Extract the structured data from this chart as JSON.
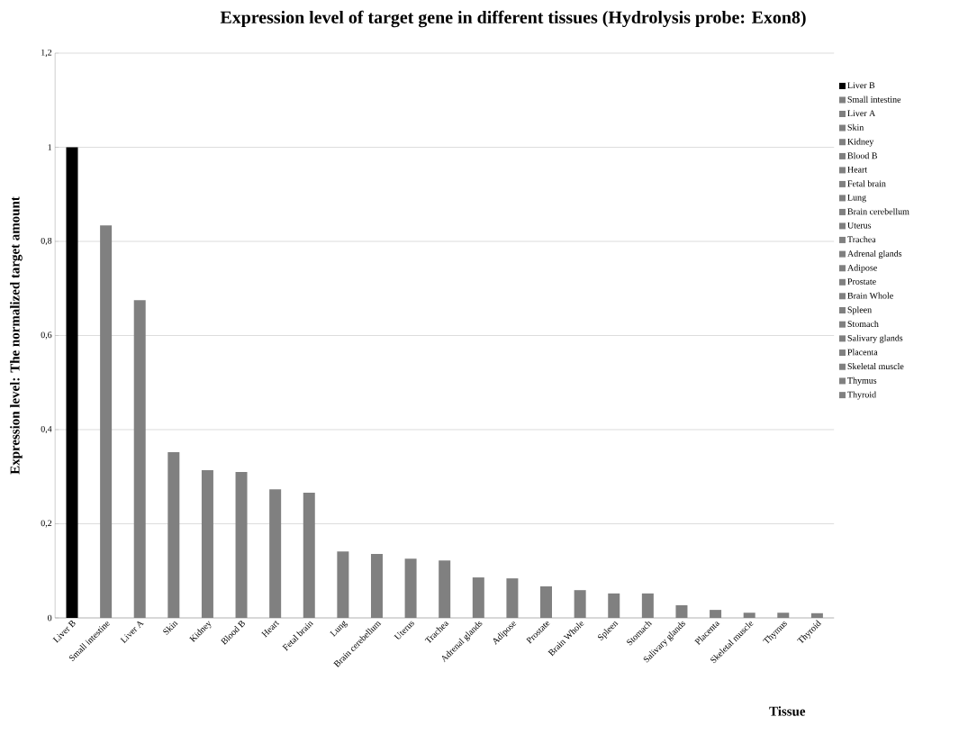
{
  "chart_data": {
    "type": "bar",
    "title": "Expression level of target gene in different tissues (Hydrolysis  probe: Exon8)",
    "xlabel": "Tissue",
    "ylabel": "Expression level: The normalized target amount",
    "categories": [
      "Liver B",
      "Small intestine",
      "Liver A",
      "Skin",
      "Kidney",
      "Blood B",
      "Heart",
      "Fetal brain",
      "Lung",
      "Brain cerebellum",
      "Uterus",
      "Trachea",
      "Adrenal glands",
      "Adipose",
      "Prostate",
      "Brain Whole",
      "Spleen",
      "Stomach",
      "Salivary glands",
      "Placenta",
      "Skeletal muscle",
      "Thymus",
      "Thyroid"
    ],
    "series": [
      {
        "name": "Liver B",
        "color": "#000000",
        "values": [
          1.0,
          null,
          null,
          null,
          null,
          null,
          null,
          null,
          null,
          null,
          null,
          null,
          null,
          null,
          null,
          null,
          null,
          null,
          null,
          null,
          null,
          null,
          null
        ]
      },
      {
        "name": "Small intestine",
        "color": "#808080",
        "values": [
          null,
          0.834,
          null,
          null,
          null,
          null,
          null,
          null,
          null,
          null,
          null,
          null,
          null,
          null,
          null,
          null,
          null,
          null,
          null,
          null,
          null,
          null,
          null
        ]
      },
      {
        "name": "Liver A",
        "color": "#808080",
        "values": [
          null,
          null,
          0.675,
          null,
          null,
          null,
          null,
          null,
          null,
          null,
          null,
          null,
          null,
          null,
          null,
          null,
          null,
          null,
          null,
          null,
          null,
          null,
          null
        ]
      },
      {
        "name": "Skin",
        "color": "#808080",
        "values": [
          null,
          null,
          null,
          0.352,
          null,
          null,
          null,
          null,
          null,
          null,
          null,
          null,
          null,
          null,
          null,
          null,
          null,
          null,
          null,
          null,
          null,
          null,
          null
        ]
      },
      {
        "name": "Kidney",
        "color": "#808080",
        "values": [
          null,
          null,
          null,
          null,
          0.314,
          null,
          null,
          null,
          null,
          null,
          null,
          null,
          null,
          null,
          null,
          null,
          null,
          null,
          null,
          null,
          null,
          null,
          null
        ]
      },
      {
        "name": "Blood B",
        "color": "#808080",
        "values": [
          null,
          null,
          null,
          null,
          null,
          0.31,
          null,
          null,
          null,
          null,
          null,
          null,
          null,
          null,
          null,
          null,
          null,
          null,
          null,
          null,
          null,
          null,
          null
        ]
      },
      {
        "name": "Heart",
        "color": "#808080",
        "values": [
          null,
          null,
          null,
          null,
          null,
          null,
          0.273,
          null,
          null,
          null,
          null,
          null,
          null,
          null,
          null,
          null,
          null,
          null,
          null,
          null,
          null,
          null,
          null
        ]
      },
      {
        "name": "Fetal brain",
        "color": "#808080",
        "values": [
          null,
          null,
          null,
          null,
          null,
          null,
          null,
          0.266,
          null,
          null,
          null,
          null,
          null,
          null,
          null,
          null,
          null,
          null,
          null,
          null,
          null,
          null,
          null
        ]
      },
      {
        "name": "Lung",
        "color": "#808080",
        "values": [
          null,
          null,
          null,
          null,
          null,
          null,
          null,
          null,
          0.141,
          null,
          null,
          null,
          null,
          null,
          null,
          null,
          null,
          null,
          null,
          null,
          null,
          null,
          null
        ]
      },
      {
        "name": "Brain cerebellum",
        "color": "#808080",
        "values": [
          null,
          null,
          null,
          null,
          null,
          null,
          null,
          null,
          null,
          0.136,
          null,
          null,
          null,
          null,
          null,
          null,
          null,
          null,
          null,
          null,
          null,
          null,
          null
        ]
      },
      {
        "name": "Uterus",
        "color": "#808080",
        "values": [
          null,
          null,
          null,
          null,
          null,
          null,
          null,
          null,
          null,
          null,
          0.126,
          null,
          null,
          null,
          null,
          null,
          null,
          null,
          null,
          null,
          null,
          null,
          null
        ]
      },
      {
        "name": "Trachea",
        "color": "#808080",
        "values": [
          null,
          null,
          null,
          null,
          null,
          null,
          null,
          null,
          null,
          null,
          null,
          0.122,
          null,
          null,
          null,
          null,
          null,
          null,
          null,
          null,
          null,
          null,
          null
        ]
      },
      {
        "name": "Adrenal glands",
        "color": "#808080",
        "values": [
          null,
          null,
          null,
          null,
          null,
          null,
          null,
          null,
          null,
          null,
          null,
          null,
          0.086,
          null,
          null,
          null,
          null,
          null,
          null,
          null,
          null,
          null,
          null
        ]
      },
      {
        "name": "Adipose",
        "color": "#808080",
        "values": [
          null,
          null,
          null,
          null,
          null,
          null,
          null,
          null,
          null,
          null,
          null,
          null,
          null,
          0.084,
          null,
          null,
          null,
          null,
          null,
          null,
          null,
          null,
          null
        ]
      },
      {
        "name": "Prostate",
        "color": "#808080",
        "values": [
          null,
          null,
          null,
          null,
          null,
          null,
          null,
          null,
          null,
          null,
          null,
          null,
          null,
          null,
          0.067,
          null,
          null,
          null,
          null,
          null,
          null,
          null,
          null
        ]
      },
      {
        "name": "Brain Whole",
        "color": "#808080",
        "values": [
          null,
          null,
          null,
          null,
          null,
          null,
          null,
          null,
          null,
          null,
          null,
          null,
          null,
          null,
          null,
          0.059,
          null,
          null,
          null,
          null,
          null,
          null,
          null
        ]
      },
      {
        "name": "Spleen",
        "color": "#808080",
        "values": [
          null,
          null,
          null,
          null,
          null,
          null,
          null,
          null,
          null,
          null,
          null,
          null,
          null,
          null,
          null,
          null,
          0.052,
          null,
          null,
          null,
          null,
          null,
          null
        ]
      },
      {
        "name": "Stomach",
        "color": "#808080",
        "values": [
          null,
          null,
          null,
          null,
          null,
          null,
          null,
          null,
          null,
          null,
          null,
          null,
          null,
          null,
          null,
          null,
          null,
          0.052,
          null,
          null,
          null,
          null,
          null
        ]
      },
      {
        "name": "Salivary glands",
        "color": "#808080",
        "values": [
          null,
          null,
          null,
          null,
          null,
          null,
          null,
          null,
          null,
          null,
          null,
          null,
          null,
          null,
          null,
          null,
          null,
          null,
          0.027,
          null,
          null,
          null,
          null
        ]
      },
      {
        "name": "Placenta",
        "color": "#808080",
        "values": [
          null,
          null,
          null,
          null,
          null,
          null,
          null,
          null,
          null,
          null,
          null,
          null,
          null,
          null,
          null,
          null,
          null,
          null,
          null,
          0.017,
          null,
          null,
          null
        ]
      },
      {
        "name": "Skeletal muscle",
        "color": "#808080",
        "values": [
          null,
          null,
          null,
          null,
          null,
          null,
          null,
          null,
          null,
          null,
          null,
          null,
          null,
          null,
          null,
          null,
          null,
          null,
          null,
          null,
          0.011,
          null,
          null
        ]
      },
      {
        "name": "Thymus",
        "color": "#808080",
        "values": [
          null,
          null,
          null,
          null,
          null,
          null,
          null,
          null,
          null,
          null,
          null,
          null,
          null,
          null,
          null,
          null,
          null,
          null,
          null,
          null,
          null,
          0.011,
          null
        ]
      },
      {
        "name": "Thyroid",
        "color": "#808080",
        "values": [
          null,
          null,
          null,
          null,
          null,
          null,
          null,
          null,
          null,
          null,
          null,
          null,
          null,
          null,
          null,
          null,
          null,
          null,
          null,
          null,
          null,
          null,
          0.01
        ]
      }
    ],
    "ylim": [
      0,
      1.2
    ],
    "yticks": [
      0,
      {
        "value": 0.2,
        "label": "0,2"
      },
      {
        "value": 0.4,
        "label": "0,4"
      },
      {
        "value": 0.6,
        "label": "0,6"
      },
      {
        "value": 0.8,
        "label": "0,8"
      },
      1,
      {
        "value": 1.2,
        "label": "1,2"
      }
    ],
    "grid": "y",
    "legend": "right"
  }
}
